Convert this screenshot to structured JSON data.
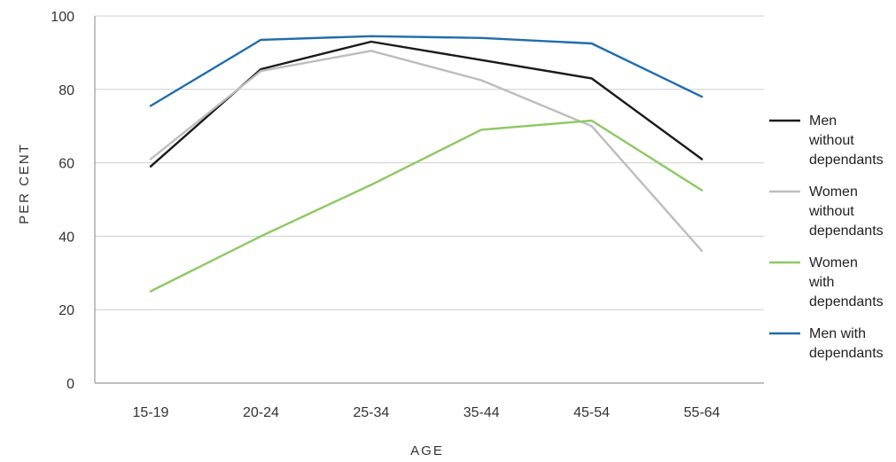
{
  "chart_data": {
    "type": "line",
    "title": "",
    "xlabel": "AGE",
    "ylabel": "PER CENT",
    "categories": [
      "15-19",
      "20-24",
      "25-34",
      "35-44",
      "45-54",
      "55-64"
    ],
    "ylim": [
      0,
      100
    ],
    "yticks": [
      0,
      20,
      40,
      60,
      80,
      100
    ],
    "grid": true,
    "legend_position": "right",
    "series": [
      {
        "name": "Men without dependants",
        "legend_lines": [
          "Men",
          "without",
          "dependants"
        ],
        "color": "#1a1a1a",
        "values": [
          59,
          85.5,
          93,
          88,
          83,
          61
        ]
      },
      {
        "name": "Women without dependants",
        "legend_lines": [
          "Women",
          "without",
          "dependants"
        ],
        "color": "#bdbdbd",
        "values": [
          61,
          85,
          90.5,
          82.5,
          70,
          36
        ]
      },
      {
        "name": "Women with dependants",
        "legend_lines": [
          "Women",
          "with",
          "dependants"
        ],
        "color": "#8dc963",
        "values": [
          25,
          40,
          54,
          69,
          71.5,
          52.5
        ]
      },
      {
        "name": "Men with dependants",
        "legend_lines": [
          "Men with",
          "dependants"
        ],
        "color": "#1f6db0",
        "values": [
          75.5,
          93.5,
          94.5,
          94,
          92.5,
          78
        ]
      }
    ]
  }
}
